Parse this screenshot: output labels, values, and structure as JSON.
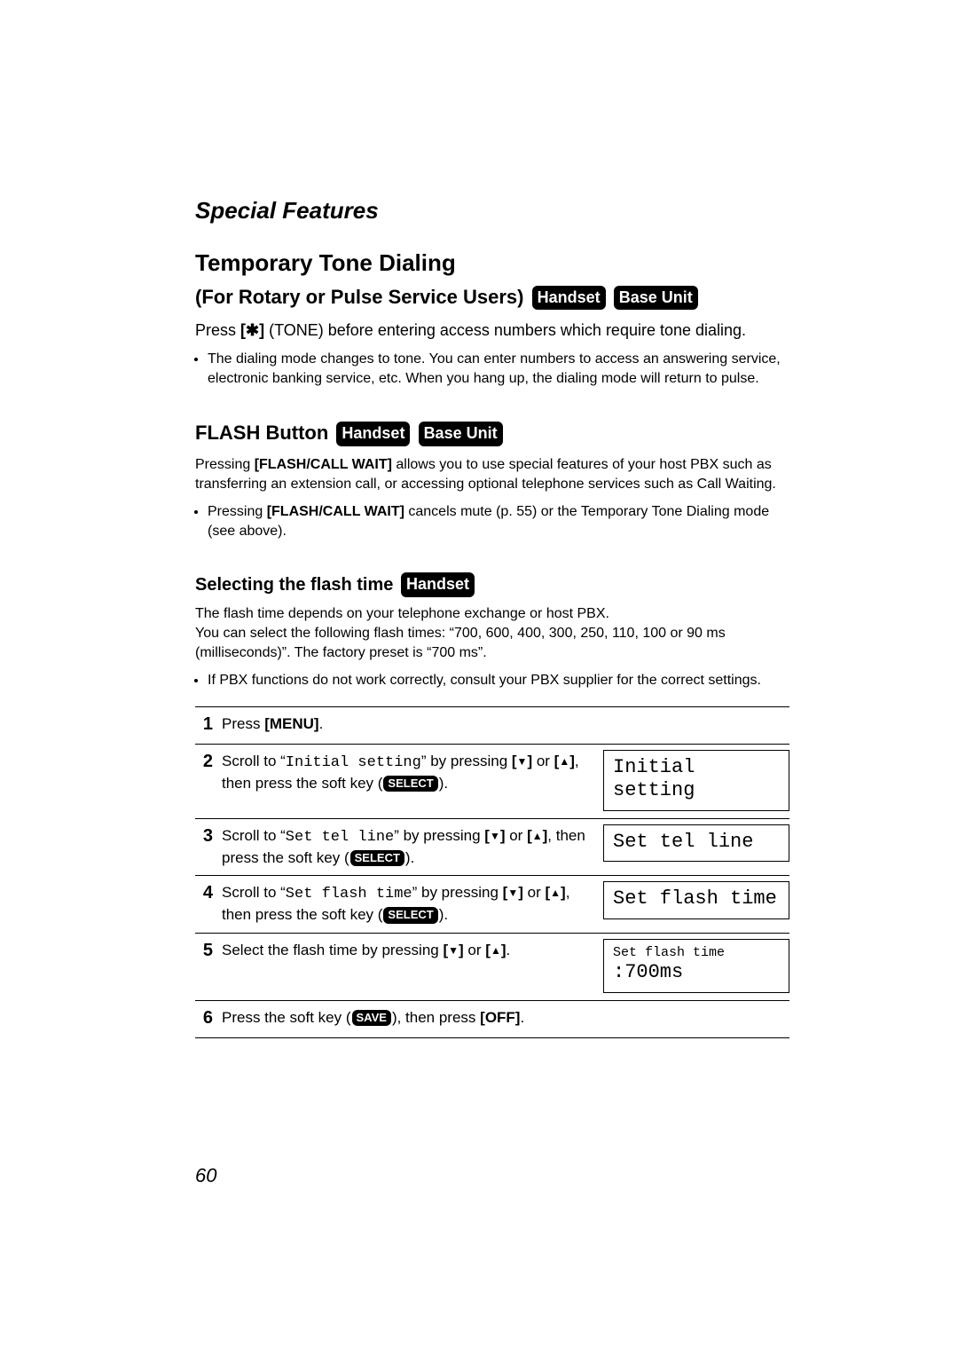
{
  "section_header": "Special Features",
  "title1": "Temporary Tone Dialing",
  "sub1_text": "(For Rotary or Pulse Service Users)",
  "badges": {
    "handset": "Handset",
    "base_unit": "Base Unit"
  },
  "p1_a": "Press ",
  "p1_b": "[",
  "p1_star": "✱",
  "p1_c": "]",
  "p1_d": " (TONE) before entering access numbers which require tone dialing.",
  "bullet1": "The dialing mode changes to tone. You can enter numbers to access an answering service, electronic banking service, etc. When you hang up, the dialing mode will return to pulse.",
  "title2": "FLASH Button",
  "p2_a": "Pressing ",
  "p2_b": "[FLASH/CALL WAIT]",
  "p2_c": " allows you to use special features of your host PBX such as transferring an extension call, or accessing optional telephone services such as Call Waiting.",
  "bullet2_a": "Pressing ",
  "bullet2_b": "[FLASH/CALL WAIT]",
  "bullet2_c": " cancels mute (p. 55) or the Temporary Tone Dialing mode (see above).",
  "title3": "Selecting the flash time",
  "p3": "The flash time depends on your telephone exchange or host PBX.\nYou can select the following flash times: “700, 600, 400, 300, 250, 110, 100 or 90 ms (milliseconds)”. The factory preset is “700 ms”.",
  "bullet3": "If PBX functions do not work correctly, consult your PBX supplier for the correct settings.",
  "steps": {
    "s1_a": "Press ",
    "s1_b": "[MENU]",
    "s1_c": ".",
    "s2_a": "Scroll to “",
    "s2_code": "Initial setting",
    "s2_b": "” by pressing ",
    "s2_c": " or ",
    "s2_d": ", then press the soft key (",
    "s2_select": "SELECT",
    "s2_e": ").",
    "s2_display": "Initial setting",
    "s3_a": "Scroll to “",
    "s3_code": "Set tel line",
    "s3_b": "” by pressing ",
    "s3_c": " or ",
    "s3_d": ", then press the soft key (",
    "s3_e": ").",
    "s3_display": "Set tel line",
    "s4_a": "Scroll to “",
    "s4_code": "Set flash time",
    "s4_b": "” by pressing ",
    "s4_c": " or ",
    "s4_d": ", then press the soft key (",
    "s4_e": ").",
    "s4_display": "Set flash time",
    "s5_a": "Select the flash time by pressing ",
    "s5_b": " or ",
    "s5_c": ".",
    "s5_display_l1": "Set flash time",
    "s5_display_l2": ":700ms",
    "s6_a": "Press the soft key (",
    "s6_save": "SAVE",
    "s6_b": "), then press ",
    "s6_off": "[OFF]",
    "s6_c": "."
  },
  "arrows": {
    "down": "▼",
    "up": "▲"
  },
  "page_number": "60"
}
